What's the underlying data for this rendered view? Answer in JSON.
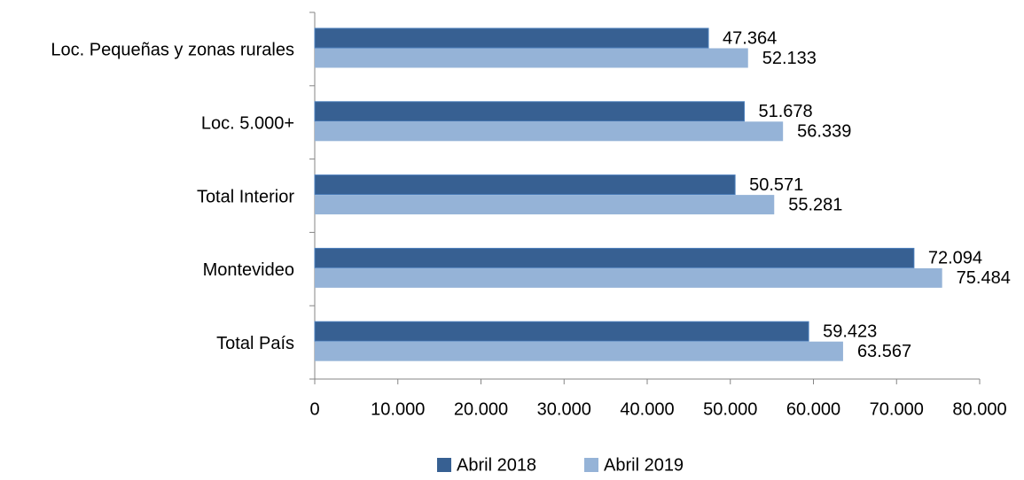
{
  "chart_data": {
    "type": "bar",
    "orientation": "horizontal",
    "categories": [
      "Loc. Pequeñas y zonas rurales",
      "Loc. 5.000+",
      "Total Interior",
      "Montevideo",
      "Total País"
    ],
    "series": [
      {
        "name": "Abril 2018",
        "color": "#376092",
        "values": [
          47364,
          51678,
          50571,
          72094,
          59423
        ],
        "value_labels": [
          "47.364",
          "51.678",
          "50.571",
          "72.094",
          "59.423"
        ]
      },
      {
        "name": "Abril 2019",
        "color": "#95b3d7",
        "values": [
          52133,
          56339,
          55281,
          75484,
          63567
        ],
        "value_labels": [
          "52.133",
          "56.339",
          "55.281",
          "75.484",
          "63.567"
        ]
      }
    ],
    "xlim": [
      0,
      80000
    ],
    "xticks": [
      0,
      {
        "value": 10000,
        "label": "10.000"
      },
      {
        "value": 20000,
        "label": "20.000"
      },
      {
        "value": 30000,
        "label": "30.000"
      },
      {
        "value": 40000,
        "label": "40.000"
      },
      {
        "value": 50000,
        "label": "50.000"
      },
      {
        "value": 60000,
        "label": "60.000"
      },
      {
        "value": 70000,
        "label": "70.000"
      },
      {
        "value": 80000,
        "label": "80.000"
      }
    ],
    "legend": "bottom"
  }
}
